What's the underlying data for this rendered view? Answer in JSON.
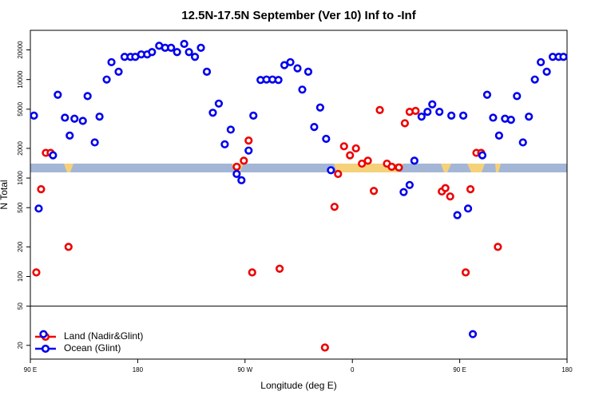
{
  "chart_data": {
    "type": "scatter",
    "title": "12.5N-17.5N September (Ver 10)   Inf to -Inf",
    "xlabel": "Longitude (deg E)",
    "ylabel": "N Total",
    "ylog": true,
    "xlim": [
      90,
      540
    ],
    "ylim": [
      14.5,
      31600
    ],
    "xticks": [
      {
        "value": 90,
        "label": "90 E"
      },
      180,
      {
        "value": 270,
        "label": "90 W"
      },
      {
        "value": 360,
        "label": "0"
      },
      {
        "value": 450,
        "label": "90 E"
      },
      {
        "value": 540,
        "label": "180"
      }
    ],
    "yticks": [
      20,
      50,
      100,
      200,
      500,
      1000,
      2000,
      5000,
      10000,
      20000
    ],
    "divider": 50,
    "legend": "bottom-left",
    "series": [
      {
        "name": "Land (Nadir&Glint)",
        "color": "#ee0000",
        "x": [
          95,
          99,
          103,
          107,
          122,
          263,
          269,
          273,
          276,
          299,
          337,
          345,
          348,
          353,
          358,
          363,
          368,
          373,
          378,
          383,
          389,
          393,
          399,
          404,
          408,
          413,
          435,
          438,
          442,
          455,
          459,
          464,
          468,
          482
        ],
        "values": [
          110,
          770,
          1800,
          1800,
          200,
          1300,
          1500,
          2400,
          110,
          120,
          19,
          510,
          1100,
          2100,
          1700,
          2000,
          1400,
          1500,
          740,
          4900,
          1400,
          1300,
          1280,
          3600,
          4700,
          4800,
          730,
          790,
          650,
          110,
          770,
          1800,
          1800,
          200
        ]
      },
      {
        "name": "Ocean (Glint)",
        "color": "#0000ee",
        "x": [
          93,
          97,
          101,
          109,
          113,
          119,
          123,
          127,
          134,
          138,
          144,
          148,
          154,
          158,
          164,
          169,
          174,
          178,
          183,
          188,
          192,
          198,
          203,
          208,
          213,
          219,
          223,
          228,
          233,
          238,
          243,
          248,
          253,
          258,
          263,
          267,
          273,
          277,
          283,
          288,
          293,
          298,
          303,
          308,
          314,
          318,
          323,
          328,
          333,
          338,
          342,
          403,
          408,
          412,
          418,
          423,
          427,
          433,
          443,
          448,
          453,
          457,
          461,
          469,
          473,
          478,
          483,
          488,
          493,
          498,
          503,
          508,
          513,
          518,
          523,
          528,
          533,
          537
        ],
        "values": [
          4300,
          490,
          26,
          1700,
          7000,
          4100,
          2700,
          4000,
          3800,
          6800,
          2300,
          4200,
          10000,
          15000,
          12000,
          17000,
          17000,
          17000,
          18000,
          18000,
          19000,
          22000,
          21000,
          21000,
          19000,
          23000,
          19000,
          17000,
          21000,
          12000,
          4600,
          5700,
          2200,
          3100,
          1100,
          950,
          1900,
          4300,
          9900,
          10000,
          10000,
          9900,
          14000,
          15000,
          13000,
          7900,
          12000,
          3300,
          5200,
          2500,
          1200,
          720,
          850,
          1500,
          4200,
          4700,
          5600,
          4700,
          4300,
          420,
          4300,
          490,
          26,
          1700,
          7000,
          4100,
          2700,
          4000,
          3900,
          6800,
          2300,
          4200,
          10000,
          15000,
          12000,
          17000,
          17000,
          17000
        ]
      }
    ]
  }
}
